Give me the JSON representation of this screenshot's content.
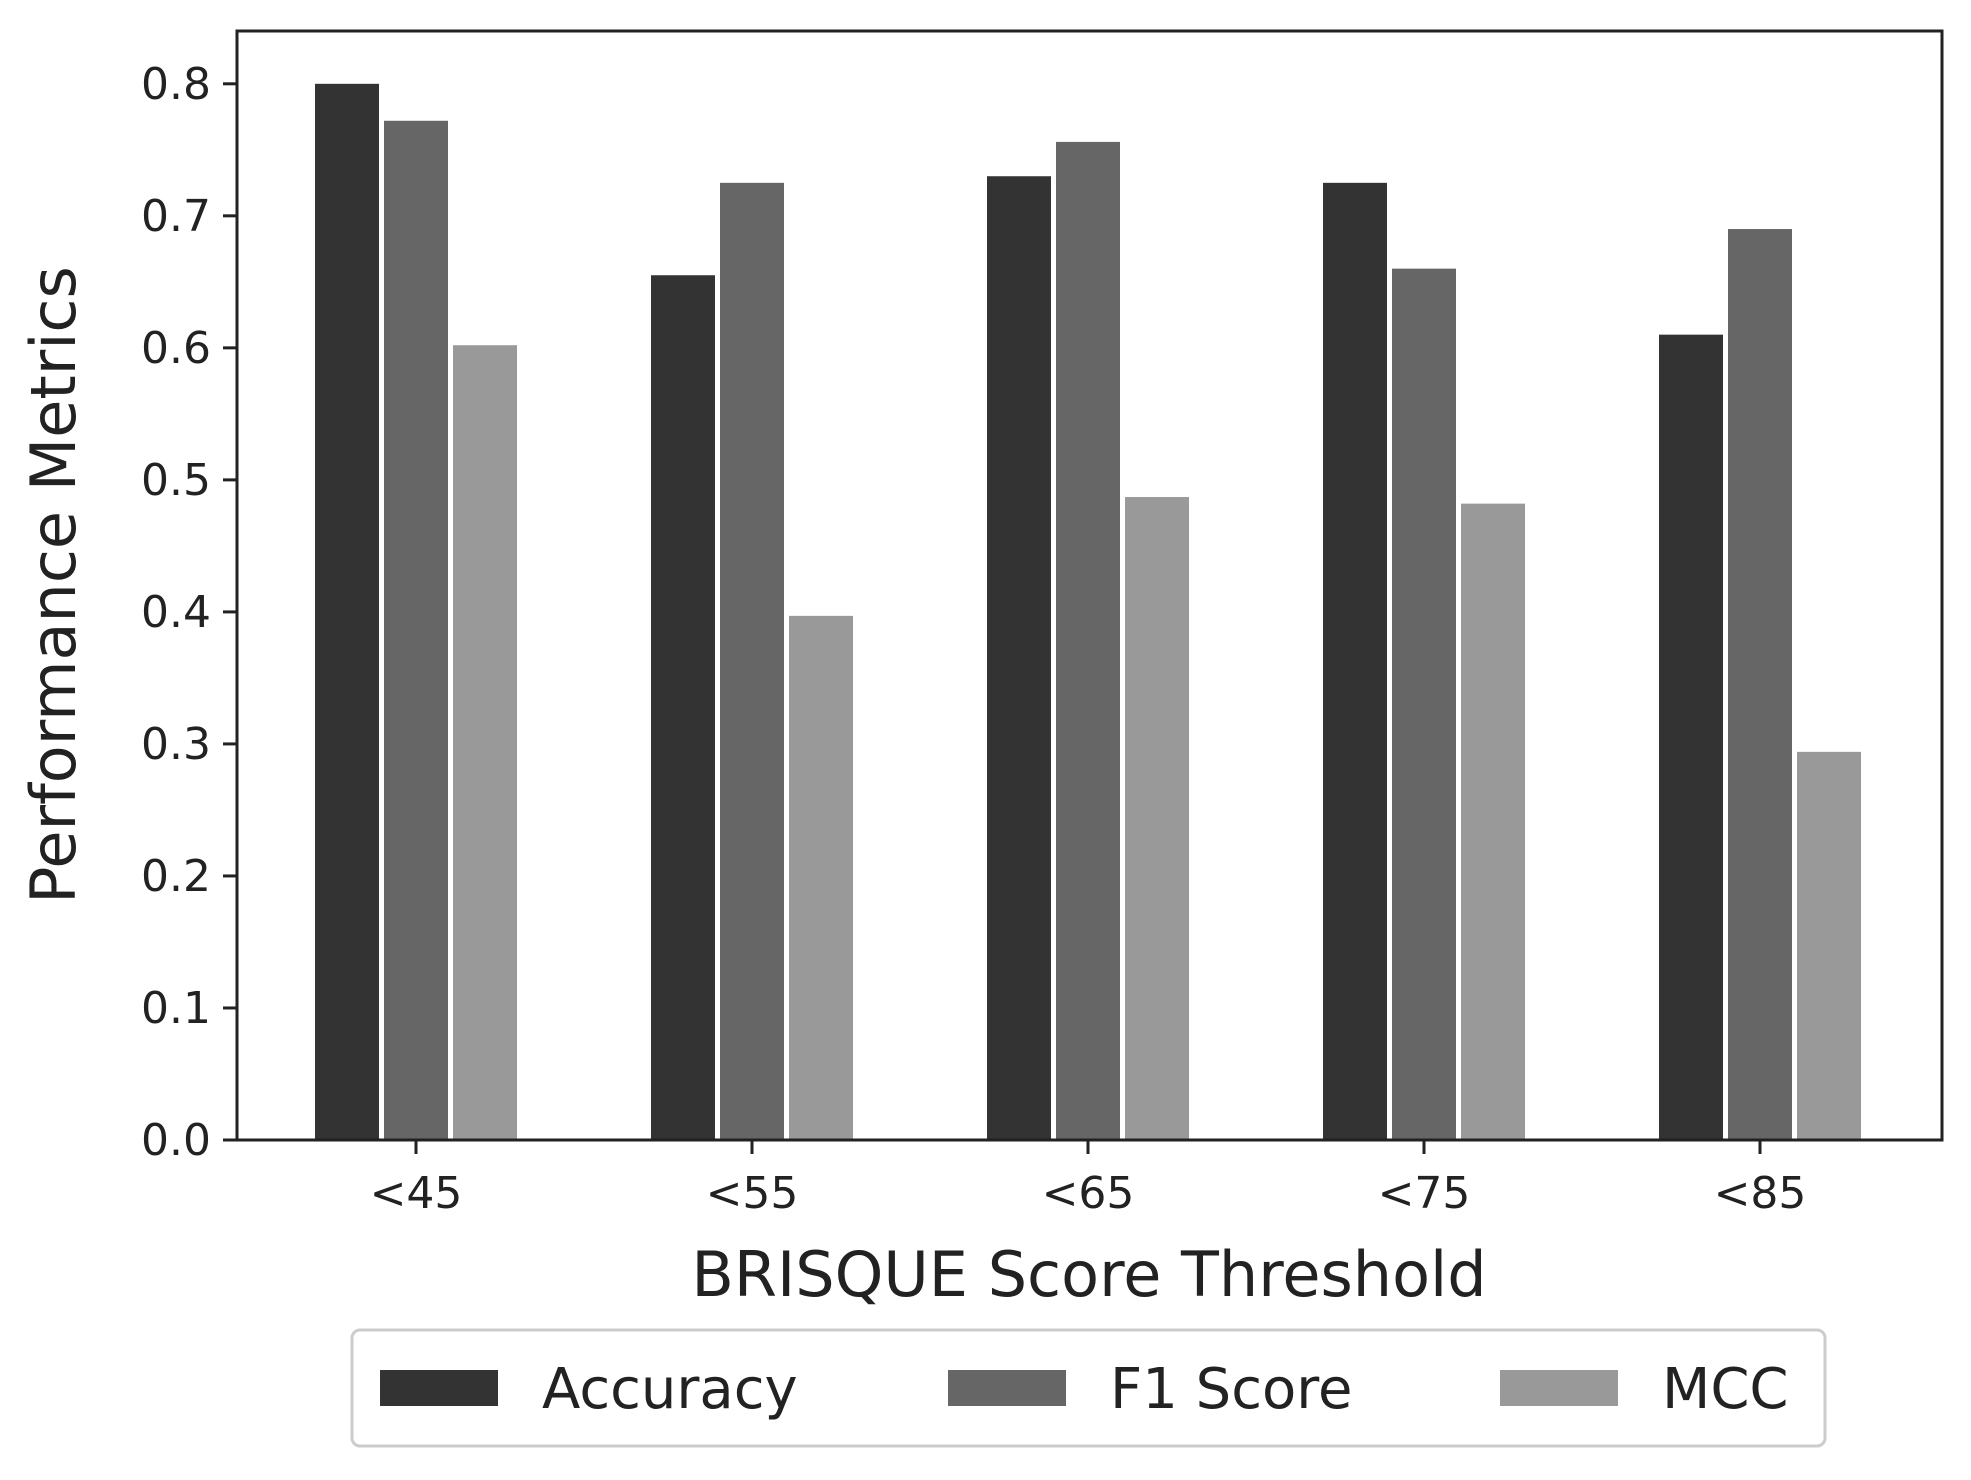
{
  "chart_data": {
    "type": "bar",
    "xlabel": "BRISQUE Score Threshold",
    "ylabel": "Performance Metrics",
    "categories": [
      "<45",
      "<55",
      "<65",
      "<75",
      "<85"
    ],
    "ylim": [
      0,
      0.84
    ],
    "yticks": [
      "0.0",
      "0.1",
      "0.2",
      "0.3",
      "0.4",
      "0.5",
      "0.6",
      "0.7",
      "0.8"
    ],
    "grid": false,
    "legend_position": "bottom-center",
    "series": [
      {
        "name": "Accuracy",
        "color": "#333333",
        "values": [
          0.8,
          0.655,
          0.73,
          0.725,
          0.61
        ]
      },
      {
        "name": "F1 Score",
        "color": "#666666",
        "values": [
          0.772,
          0.725,
          0.756,
          0.66,
          0.69
        ]
      },
      {
        "name": "MCC",
        "color": "#999999",
        "values": [
          0.602,
          0.397,
          0.487,
          0.482,
          0.294
        ]
      }
    ]
  }
}
